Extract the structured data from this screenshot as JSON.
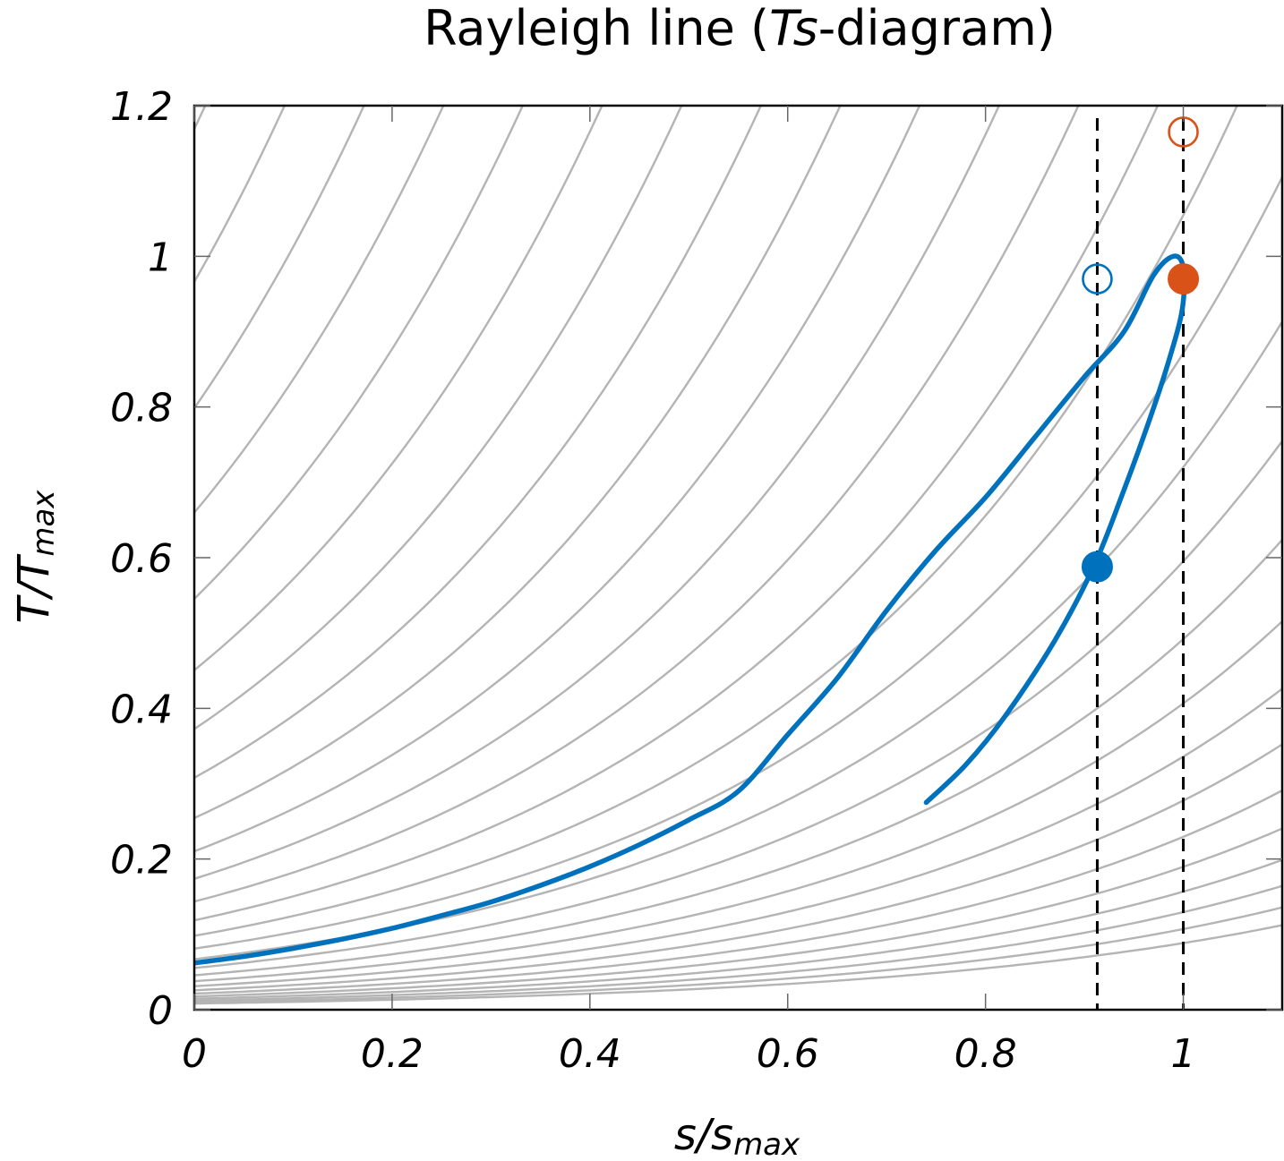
{
  "chart_data": {
    "type": "line",
    "title": {
      "prefix": "Rayleigh line (",
      "italic": "Ts",
      "suffix": "-diagram)"
    },
    "xlabel": {
      "main": "s",
      "sep": "/",
      "base": "s",
      "sub": "max"
    },
    "ylabel": {
      "main": "T",
      "sep": "/",
      "base": "T",
      "sub": "max"
    },
    "xlim": [
      0,
      1.1
    ],
    "ylim": [
      0,
      1.2
    ],
    "x_ticks": [
      {
        "value": 0,
        "label": "0"
      },
      {
        "value": 0.2,
        "label": "0.2"
      },
      {
        "value": 0.4,
        "label": "0.4"
      },
      {
        "value": 0.6,
        "label": "0.6"
      },
      {
        "value": 0.8,
        "label": "0.8"
      },
      {
        "value": 1,
        "label": "1"
      }
    ],
    "y_ticks": [
      {
        "value": 0,
        "label": "0"
      },
      {
        "value": 0.2,
        "label": "0.2"
      },
      {
        "value": 0.4,
        "label": "0.4"
      },
      {
        "value": 0.6,
        "label": "0.6"
      },
      {
        "value": 0.8,
        "label": "0.8"
      },
      {
        "value": 1,
        "label": "1"
      },
      {
        "value": 1.2,
        "label": "1.2"
      }
    ],
    "grid": false,
    "isobar_family": {
      "color": "#b4b4b4",
      "count": 120,
      "base_ratio": 1.21,
      "base_value": 0.00823,
      "curvature": 2.375
    },
    "series": [
      {
        "color": "#0072bd",
        "points": [
          [
            0.0,
            0.062
          ],
          [
            0.05,
            0.0707
          ],
          [
            0.1,
            0.0814
          ],
          [
            0.15,
            0.0938
          ],
          [
            0.2,
            0.108
          ],
          [
            0.25,
            0.125
          ],
          [
            0.3,
            0.143
          ],
          [
            0.35,
            0.165
          ],
          [
            0.4,
            0.19
          ],
          [
            0.45,
            0.219
          ],
          [
            0.5,
            0.252
          ],
          [
            0.55,
            0.29
          ],
          [
            0.6,
            0.365
          ],
          [
            0.65,
            0.44
          ],
          [
            0.7,
            0.53
          ],
          [
            0.75,
            0.61
          ],
          [
            0.8,
            0.68
          ],
          [
            0.85,
            0.76
          ],
          [
            0.9,
            0.84
          ],
          [
            0.94,
            0.9
          ],
          [
            0.97,
            0.975
          ],
          [
            0.99,
            1.0
          ],
          [
            1.0,
            0.985
          ],
          [
            0.999,
            0.93
          ],
          [
            0.985,
            0.86
          ],
          [
            0.965,
            0.78
          ],
          [
            0.94,
            0.69
          ],
          [
            0.91,
            0.59
          ],
          [
            0.87,
            0.49
          ],
          [
            0.82,
            0.39
          ],
          [
            0.78,
            0.325
          ],
          [
            0.74,
            0.275
          ]
        ]
      }
    ],
    "vertical_lines": [
      {
        "x": 0.913,
        "style": "dashed",
        "color": "#000000"
      },
      {
        "x": 1.0,
        "style": "dashed",
        "color": "#000000"
      }
    ],
    "markers": [
      {
        "x": 0.913,
        "y": 0.588,
        "filled": true,
        "color": "#0072bd"
      },
      {
        "x": 0.913,
        "y": 0.97,
        "filled": false,
        "color": "#0072bd"
      },
      {
        "x": 1.0,
        "y": 0.97,
        "filled": true,
        "color": "#d95319"
      },
      {
        "x": 1.0,
        "y": 1.165,
        "filled": false,
        "color": "#d95319"
      }
    ]
  }
}
